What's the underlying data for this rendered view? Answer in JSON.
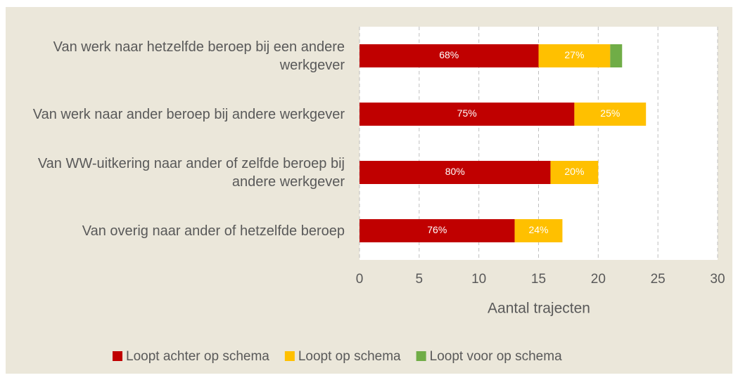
{
  "chart_data": {
    "type": "stacked-barh",
    "categories": [
      "Van werk naar hetzelfde beroep bij een andere werkgever",
      "Van werk naar ander beroep bij andere werkgever",
      "Van WW-uitkering naar ander of zelfde beroep bij andere werkgever",
      "Van overig naar ander of hetzelfde beroep"
    ],
    "series": [
      {
        "name": "Loopt achter op schema",
        "color": "#c00000",
        "values": [
          15,
          18,
          16,
          13
        ],
        "percent_labels": [
          "68%",
          "75%",
          "80%",
          "76%"
        ]
      },
      {
        "name": "Loopt op schema",
        "color": "#ffc000",
        "values": [
          6,
          6,
          4,
          4
        ],
        "percent_labels": [
          "27%",
          "25%",
          "20%",
          "24%"
        ]
      },
      {
        "name": "Loopt voor op schema",
        "color": "#70ad47",
        "values": [
          1,
          0,
          0,
          0
        ]
      }
    ],
    "xlabel": "Aantal trajecten",
    "xlim": [
      0,
      30
    ],
    "xticks": [
      0,
      5,
      10,
      15,
      20,
      25,
      30
    ],
    "grid": true,
    "legend": "bottom"
  }
}
